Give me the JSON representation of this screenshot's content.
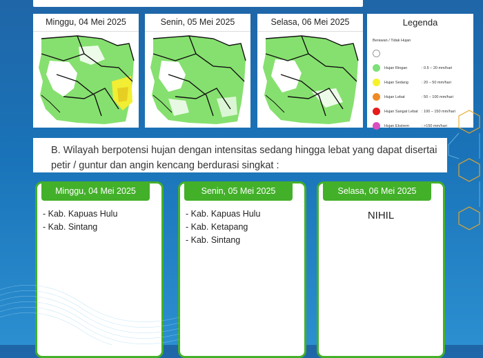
{
  "panels": [
    {
      "date": "Minggu, 04 Mei 2025"
    },
    {
      "date": "Senin, 05 Mei 2025"
    },
    {
      "date": "Selasa, 06 Mei 2025"
    }
  ],
  "legend": {
    "title": "Legenda",
    "items": [
      {
        "name": "Berawan / Tidak Hujan",
        "range": "",
        "color": "#ffffff"
      },
      {
        "name": "Hujan Ringan",
        "range": ": 0.5 – 20 mm/hari",
        "color": "#7ee07a"
      },
      {
        "name": "Hujan Sedang",
        "range": ": 20 – 50 mm/hari",
        "color": "#f7f12a"
      },
      {
        "name": "Hujan Lebat",
        "range": ": 50 – 100 mm/hari",
        "color": "#f08a24"
      },
      {
        "name": "Hujan Sangat Lebat",
        "range": ": 100 – 150 mm/hari",
        "color": "#e61b1b"
      },
      {
        "name": "Hujan Ekstrem",
        "range": ": >150 mm/hari",
        "color": "#d94fc0"
      }
    ]
  },
  "section_b": {
    "title": "B. Wilayah berpotensi hujan dengan intensitas sedang hingga lebat yang dapat disertai petir / guntur dan angin kencang berdurasi singkat :"
  },
  "cards": [
    {
      "date": "Minggu, 04 Mei 2025",
      "items": [
        "- Kab. Kapuas Hulu",
        "- Kab. Sintang"
      ],
      "nihil": ""
    },
    {
      "date": "Senin, 05 Mei 2025",
      "items": [
        "- Kab. Kapuas Hulu",
        "- Kab. Ketapang",
        "- Kab. Sintang"
      ],
      "nihil": ""
    },
    {
      "date": "Selasa, 06 Mei 2025",
      "items": [],
      "nihil": "NIHIL"
    }
  ]
}
